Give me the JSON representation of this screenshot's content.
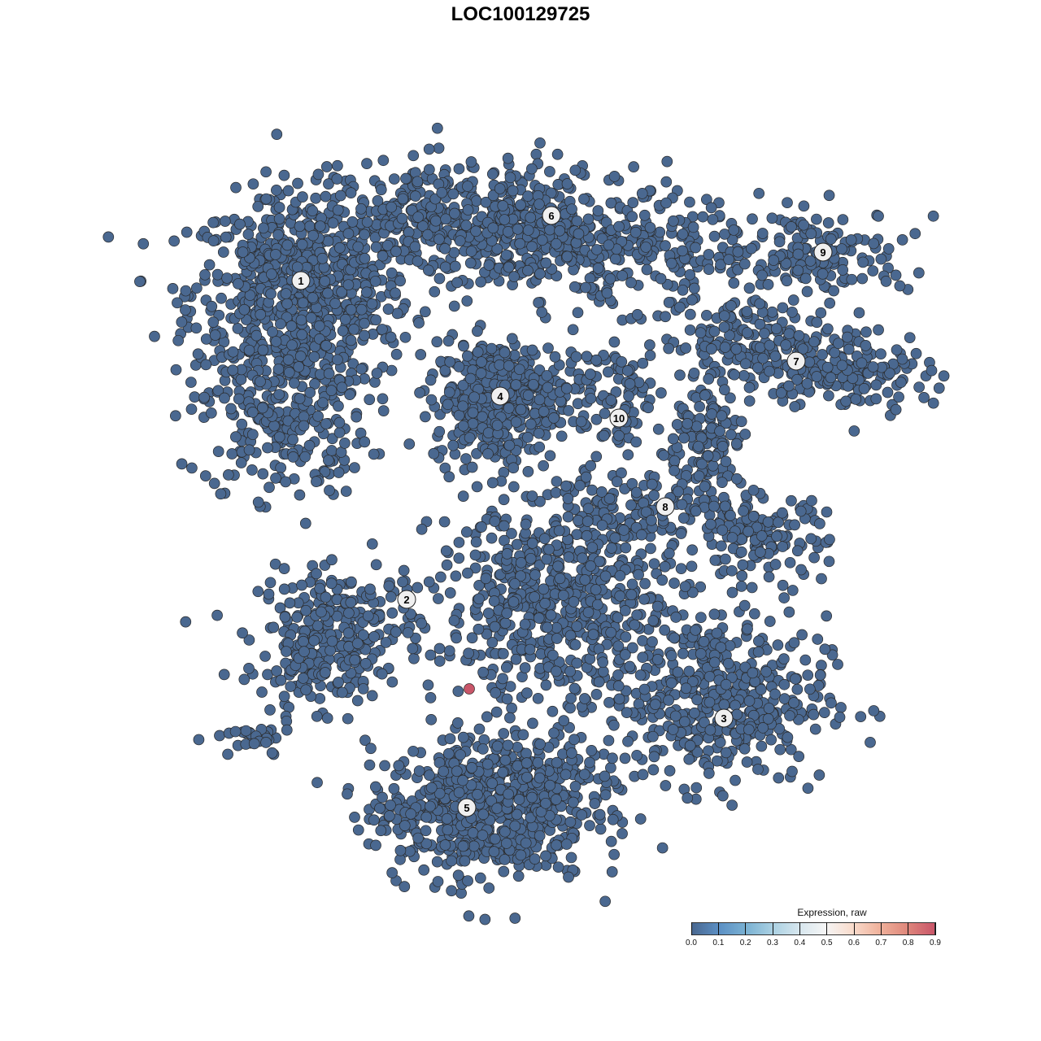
{
  "chart_data": {
    "type": "scatter",
    "title": "LOC100129725",
    "xlabel": "",
    "ylabel": "",
    "axes_visible": false,
    "grid": false,
    "point_color_default": "#4a6890",
    "point_stroke": "#2a2a2a",
    "highlight_color": "#c95669",
    "clusters": [
      {
        "label": "1",
        "label_pos": [
          -27,
          29.5
        ],
        "components": [
          [
            -27,
            28,
            8,
            7,
            700
          ],
          [
            -29,
            13,
            6,
            6,
            260
          ]
        ]
      },
      {
        "label": "2",
        "label_pos": [
          -14,
          -9.7
        ],
        "components": [
          [
            -22,
            -13,
            6,
            4,
            220
          ],
          [
            -25,
            -18,
            4,
            3,
            100
          ],
          [
            -33,
            -27,
            3,
            1.5,
            30
          ]
        ]
      },
      {
        "label": "3",
        "label_pos": [
          25,
          -24.3
        ],
        "components": [
          [
            24,
            -22,
            8,
            6,
            450
          ]
        ]
      },
      {
        "label": "4",
        "label_pos": [
          -2.5,
          15.3
        ],
        "components": [
          [
            -3,
            14.5,
            4.5,
            4.5,
            400
          ]
        ]
      },
      {
        "label": "5",
        "label_pos": [
          -6.6,
          -35.3
        ],
        "components": [
          [
            -5,
            -36,
            8,
            5,
            500
          ],
          [
            1,
            -32,
            7,
            4,
            200
          ]
        ]
      },
      {
        "label": "6",
        "label_pos": [
          3.8,
          37.5
        ],
        "components": [
          [
            -6,
            37,
            12,
            4,
            500
          ],
          [
            10,
            33,
            10,
            4,
            300
          ]
        ]
      },
      {
        "label": "7",
        "label_pos": [
          33.9,
          19.6
        ],
        "components": [
          [
            29,
            22,
            6,
            3,
            150
          ],
          [
            40,
            18.5,
            6,
            3,
            160
          ]
        ]
      },
      {
        "label": "8",
        "label_pos": [
          17.8,
          1.7
        ],
        "components": [
          [
            22,
            9,
            3,
            5,
            150
          ],
          [
            29,
            -2,
            5,
            3,
            150
          ],
          [
            13,
            1,
            6,
            3,
            100
          ]
        ]
      },
      {
        "label": "9",
        "label_pos": [
          37.2,
          33
        ],
        "components": [
          [
            36,
            33,
            7,
            3,
            160
          ]
        ]
      },
      {
        "label": "10",
        "label_pos": [
          12.1,
          12.6
        ],
        "components": [
          [
            12,
            13,
            3,
            4,
            60
          ],
          [
            8,
            18,
            5,
            2,
            60
          ]
        ]
      },
      {
        "label": "",
        "label_pos": null,
        "components": [
          [
            5,
            -10,
            9,
            7,
            600
          ]
        ]
      }
    ],
    "highlighted_points": [
      {
        "x": -6.3,
        "y": -20.7,
        "expression": 0.85
      }
    ],
    "legend": {
      "title": "Expression, raw",
      "position": "bottom-right",
      "ticks": [
        "0.0",
        "0.1",
        "0.2",
        "0.3",
        "0.4",
        "0.5",
        "0.6",
        "0.7",
        "0.8",
        "0.9"
      ],
      "range": [
        0,
        0.9
      ],
      "colors": [
        "#4a6890",
        "#f5f5f5",
        "#c95669"
      ]
    }
  }
}
